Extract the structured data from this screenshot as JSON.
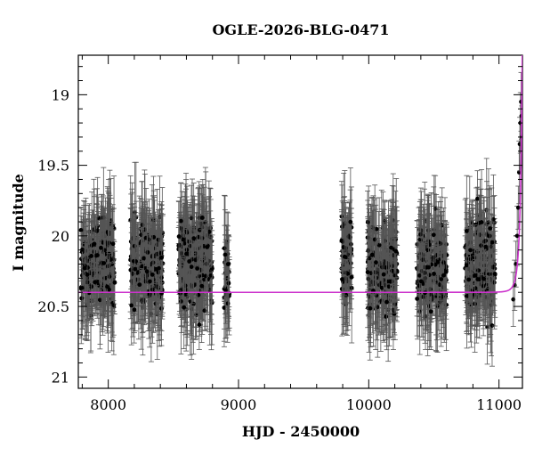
{
  "chart_data": {
    "type": "scatter",
    "title": "OGLE-2026-BLG-0471",
    "xlabel": "HJD - 2450000",
    "ylabel": "I magnitude",
    "xlim": [
      7770,
      11180
    ],
    "ylim": [
      21.08,
      18.72
    ],
    "y_inverted": true,
    "x_ticks": [
      8000,
      9000,
      10000,
      11000
    ],
    "x_tick_labels": [
      "8000",
      "9000",
      "10000",
      "11000"
    ],
    "y_ticks": [
      19,
      19.5,
      20,
      20.5,
      21
    ],
    "y_tick_labels": [
      "19",
      "19.5",
      "20",
      "20.5",
      "21"
    ],
    "grid": false,
    "legend": "none",
    "seasons": [
      {
        "start": 7790,
        "end": 8050,
        "mean_mag": 20.2,
        "scatter": 0.35
      },
      {
        "start": 8170,
        "end": 8420,
        "mean_mag": 20.2,
        "scatter": 0.35
      },
      {
        "start": 8540,
        "end": 8800,
        "mean_mag": 20.2,
        "scatter": 0.35
      },
      {
        "start": 8890,
        "end": 8930,
        "mean_mag": 20.3,
        "scatter": 0.3
      },
      {
        "start": 9790,
        "end": 9870,
        "mean_mag": 20.15,
        "scatter": 0.35
      },
      {
        "start": 9990,
        "end": 10220,
        "mean_mag": 20.25,
        "scatter": 0.35
      },
      {
        "start": 10370,
        "end": 10600,
        "mean_mag": 20.25,
        "scatter": 0.35
      },
      {
        "start": 10740,
        "end": 10970,
        "mean_mag": 20.2,
        "scatter": 0.35
      }
    ],
    "event_points": [
      {
        "x": 11110,
        "y": 20.45
      },
      {
        "x": 11120,
        "y": 20.35
      },
      {
        "x": 11130,
        "y": 20.2
      },
      {
        "x": 11140,
        "y": 20.0
      },
      {
        "x": 11148,
        "y": 19.8
      },
      {
        "x": 11155,
        "y": 19.55
      },
      {
        "x": 11160,
        "y": 19.35
      },
      {
        "x": 11165,
        "y": 19.2
      },
      {
        "x": 11170,
        "y": 19.05
      },
      {
        "x": 11173,
        "y": 19.15
      },
      {
        "x": 11176,
        "y": 19.3
      }
    ],
    "model": {
      "color": "#cc33cc",
      "baseline_mag": 20.4,
      "t0": 11185,
      "tE": 35,
      "u0": 0.12
    },
    "colors": {
      "points": "#000000",
      "errorbars": "#555555",
      "model": "#cc33cc"
    }
  }
}
